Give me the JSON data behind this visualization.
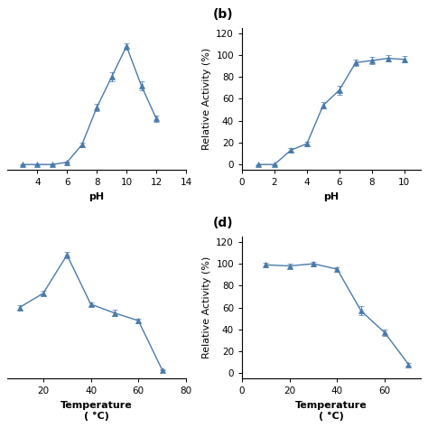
{
  "panel_a": {
    "x": [
      3,
      4,
      5,
      6,
      7,
      8,
      9,
      10,
      11,
      12
    ],
    "y": [
      0,
      0,
      0,
      2,
      18,
      52,
      80,
      108,
      72,
      42
    ],
    "yerr": [
      0.5,
      0.5,
      0.5,
      0.5,
      2,
      3,
      4,
      3,
      4,
      3
    ],
    "xlabel": "pH",
    "xlim": [
      2,
      14
    ],
    "ylim": [
      -5,
      125
    ],
    "xticks": [
      4,
      6,
      8,
      10,
      12,
      14
    ]
  },
  "panel_b": {
    "label": "(b)",
    "x": [
      1,
      2,
      3,
      4,
      5,
      6,
      7,
      8,
      9,
      10
    ],
    "y": [
      0,
      0,
      13,
      19,
      54,
      68,
      93,
      95,
      97,
      96
    ],
    "yerr": [
      0.5,
      0.5,
      2,
      2,
      3,
      4,
      3,
      3,
      3,
      3
    ],
    "xlabel": "pH",
    "ylabel": "Relative Activity (%)",
    "xlim": [
      0,
      11
    ],
    "ylim": [
      -5,
      125
    ],
    "yticks": [
      0,
      20,
      40,
      60,
      80,
      100,
      120
    ],
    "xticks": [
      0,
      2,
      4,
      6,
      8,
      10
    ]
  },
  "panel_c": {
    "x": [
      10,
      20,
      30,
      40,
      50,
      60,
      70
    ],
    "y": [
      60,
      73,
      108,
      63,
      55,
      48,
      3
    ],
    "yerr": [
      2,
      2,
      3,
      2,
      3,
      2,
      0.5
    ],
    "xlabel": "Temperature",
    "xlabel2": "( °C)",
    "xlim": [
      5,
      80
    ],
    "ylim": [
      -5,
      125
    ],
    "xticks": [
      20,
      40,
      60,
      80
    ]
  },
  "panel_d": {
    "label": "(d)",
    "x": [
      10,
      20,
      30,
      40,
      50,
      60,
      70
    ],
    "y": [
      99,
      98,
      100,
      95,
      57,
      37,
      8
    ],
    "yerr": [
      2,
      2,
      2,
      2,
      4,
      3,
      1
    ],
    "xlabel": "Temperature",
    "xlabel2": "( °C)",
    "ylabel": "Relative Activity (%)",
    "xlim": [
      0,
      75
    ],
    "ylim": [
      -5,
      125
    ],
    "yticks": [
      0,
      20,
      40,
      60,
      80,
      100,
      120
    ],
    "xticks": [
      0,
      20,
      40,
      60
    ]
  },
  "line_color": "#4a7aaa",
  "marker": "^",
  "markersize": 4,
  "linewidth": 1.0,
  "capsize": 2,
  "elinewidth": 0.8,
  "label_fontsize": 8,
  "tick_fontsize": 7.5,
  "subplot_label_fontsize": 10
}
